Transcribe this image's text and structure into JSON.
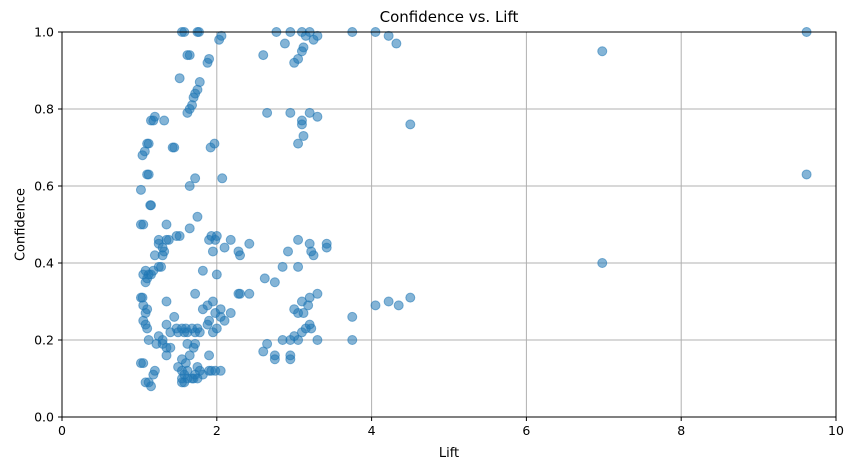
{
  "chart_data": {
    "type": "scatter",
    "title": "Confidence vs. Lift",
    "xlabel": "Lift",
    "ylabel": "Confidence",
    "xlim": [
      0,
      10
    ],
    "ylim": [
      0.0,
      1.0
    ],
    "xticks": [
      0,
      2,
      4,
      6,
      8,
      10
    ],
    "xtick_labels": [
      "0",
      "2",
      "4",
      "6",
      "8",
      "10"
    ],
    "yticks": [
      0.0,
      0.2,
      0.4,
      0.6,
      0.8,
      1.0
    ],
    "ytick_labels": [
      "0.0",
      "0.2",
      "0.4",
      "0.6",
      "0.8",
      "1.0"
    ],
    "grid": true,
    "marker_color": "#1f77b4",
    "marker_alpha": 0.55,
    "points": [
      [
        1.55,
        1.0
      ],
      [
        1.58,
        1.0
      ],
      [
        1.75,
        1.0
      ],
      [
        1.77,
        1.0
      ],
      [
        2.03,
        0.98
      ],
      [
        2.06,
        0.99
      ],
      [
        2.77,
        1.0
      ],
      [
        2.95,
        1.0
      ],
      [
        3.1,
        1.0
      ],
      [
        3.15,
        0.99
      ],
      [
        3.2,
        1.0
      ],
      [
        3.25,
        0.98
      ],
      [
        3.3,
        0.99
      ],
      [
        3.75,
        1.0
      ],
      [
        4.05,
        1.0
      ],
      [
        4.22,
        0.99
      ],
      [
        9.62,
        1.0
      ],
      [
        1.62,
        0.94
      ],
      [
        1.65,
        0.94
      ],
      [
        1.88,
        0.92
      ],
      [
        1.9,
        0.93
      ],
      [
        2.6,
        0.94
      ],
      [
        2.88,
        0.97
      ],
      [
        3.0,
        0.92
      ],
      [
        3.05,
        0.93
      ],
      [
        3.1,
        0.95
      ],
      [
        3.12,
        0.96
      ],
      [
        4.32,
        0.97
      ],
      [
        6.98,
        0.95
      ],
      [
        1.52,
        0.88
      ],
      [
        1.75,
        0.85
      ],
      [
        1.72,
        0.84
      ],
      [
        1.78,
        0.87
      ],
      [
        1.7,
        0.83
      ],
      [
        1.62,
        0.79
      ],
      [
        1.65,
        0.8
      ],
      [
        1.68,
        0.81
      ],
      [
        2.65,
        0.79
      ],
      [
        2.95,
        0.79
      ],
      [
        3.2,
        0.79
      ],
      [
        3.3,
        0.78
      ],
      [
        1.2,
        0.78
      ],
      [
        1.18,
        0.77
      ],
      [
        1.15,
        0.77
      ],
      [
        1.32,
        0.77
      ],
      [
        3.1,
        0.77
      ],
      [
        3.1,
        0.76
      ],
      [
        4.5,
        0.76
      ],
      [
        3.12,
        0.73
      ],
      [
        1.07,
        0.69
      ],
      [
        1.1,
        0.71
      ],
      [
        1.12,
        0.71
      ],
      [
        1.04,
        0.68
      ],
      [
        1.43,
        0.7
      ],
      [
        1.45,
        0.7
      ],
      [
        1.92,
        0.7
      ],
      [
        1.97,
        0.71
      ],
      [
        3.05,
        0.71
      ],
      [
        1.1,
        0.63
      ],
      [
        1.12,
        0.63
      ],
      [
        1.72,
        0.62
      ],
      [
        2.07,
        0.62
      ],
      [
        1.65,
        0.6
      ],
      [
        1.02,
        0.59
      ],
      [
        9.62,
        0.63
      ],
      [
        1.14,
        0.55
      ],
      [
        1.15,
        0.55
      ],
      [
        1.75,
        0.52
      ],
      [
        1.02,
        0.5
      ],
      [
        1.05,
        0.5
      ],
      [
        1.35,
        0.5
      ],
      [
        1.35,
        0.46
      ],
      [
        1.38,
        0.46
      ],
      [
        1.48,
        0.47
      ],
      [
        1.52,
        0.47
      ],
      [
        1.25,
        0.46
      ],
      [
        1.25,
        0.45
      ],
      [
        1.3,
        0.44
      ],
      [
        1.65,
        0.49
      ],
      [
        1.9,
        0.46
      ],
      [
        1.93,
        0.47
      ],
      [
        1.98,
        0.46
      ],
      [
        2.0,
        0.47
      ],
      [
        2.18,
        0.46
      ],
      [
        2.42,
        0.45
      ],
      [
        2.92,
        0.43
      ],
      [
        3.05,
        0.46
      ],
      [
        3.2,
        0.45
      ],
      [
        3.22,
        0.43
      ],
      [
        3.25,
        0.42
      ],
      [
        3.42,
        0.45
      ],
      [
        3.42,
        0.44
      ],
      [
        1.3,
        0.42
      ],
      [
        1.32,
        0.43
      ],
      [
        1.95,
        0.43
      ],
      [
        2.1,
        0.44
      ],
      [
        2.28,
        0.43
      ],
      [
        2.3,
        0.42
      ],
      [
        1.2,
        0.42
      ],
      [
        1.25,
        0.39
      ],
      [
        1.28,
        0.39
      ],
      [
        1.82,
        0.38
      ],
      [
        2.0,
        0.37
      ],
      [
        2.85,
        0.39
      ],
      [
        3.05,
        0.39
      ],
      [
        6.98,
        0.4
      ],
      [
        1.05,
        0.37
      ],
      [
        1.08,
        0.38
      ],
      [
        1.1,
        0.36
      ],
      [
        1.12,
        0.37
      ],
      [
        1.15,
        0.37
      ],
      [
        1.18,
        0.38
      ],
      [
        1.08,
        0.35
      ],
      [
        2.62,
        0.36
      ],
      [
        2.75,
        0.35
      ],
      [
        1.72,
        0.32
      ],
      [
        2.28,
        0.32
      ],
      [
        2.3,
        0.32
      ],
      [
        2.42,
        0.32
      ],
      [
        3.2,
        0.31
      ],
      [
        3.3,
        0.32
      ],
      [
        1.35,
        0.3
      ],
      [
        1.05,
        0.29
      ],
      [
        1.1,
        0.28
      ],
      [
        1.08,
        0.27
      ],
      [
        1.04,
        0.31
      ],
      [
        1.02,
        0.31
      ],
      [
        1.88,
        0.29
      ],
      [
        1.95,
        0.3
      ],
      [
        1.82,
        0.28
      ],
      [
        1.98,
        0.27
      ],
      [
        2.05,
        0.28
      ],
      [
        2.18,
        0.27
      ],
      [
        3.0,
        0.28
      ],
      [
        3.05,
        0.27
      ],
      [
        3.1,
        0.3
      ],
      [
        3.12,
        0.27
      ],
      [
        3.18,
        0.29
      ],
      [
        4.05,
        0.29
      ],
      [
        4.22,
        0.3
      ],
      [
        4.35,
        0.29
      ],
      [
        4.5,
        0.31
      ],
      [
        3.75,
        0.26
      ],
      [
        1.05,
        0.25
      ],
      [
        1.08,
        0.24
      ],
      [
        1.1,
        0.23
      ],
      [
        1.45,
        0.26
      ],
      [
        1.48,
        0.23
      ],
      [
        1.5,
        0.22
      ],
      [
        1.55,
        0.23
      ],
      [
        1.58,
        0.22
      ],
      [
        1.6,
        0.23
      ],
      [
        1.62,
        0.22
      ],
      [
        1.68,
        0.23
      ],
      [
        1.72,
        0.22
      ],
      [
        1.75,
        0.23
      ],
      [
        1.78,
        0.22
      ],
      [
        1.88,
        0.24
      ],
      [
        1.9,
        0.25
      ],
      [
        1.95,
        0.22
      ],
      [
        2.0,
        0.23
      ],
      [
        2.05,
        0.26
      ],
      [
        2.1,
        0.25
      ],
      [
        3.0,
        0.21
      ],
      [
        3.05,
        0.2
      ],
      [
        3.1,
        0.22
      ],
      [
        3.15,
        0.23
      ],
      [
        3.2,
        0.24
      ],
      [
        3.22,
        0.23
      ],
      [
        1.12,
        0.2
      ],
      [
        1.25,
        0.21
      ],
      [
        1.3,
        0.2
      ],
      [
        1.35,
        0.24
      ],
      [
        1.4,
        0.22
      ],
      [
        3.3,
        0.2
      ],
      [
        3.75,
        0.2
      ],
      [
        1.22,
        0.19
      ],
      [
        1.3,
        0.19
      ],
      [
        1.35,
        0.18
      ],
      [
        1.4,
        0.18
      ],
      [
        1.62,
        0.19
      ],
      [
        1.7,
        0.18
      ],
      [
        1.72,
        0.19
      ],
      [
        2.65,
        0.19
      ],
      [
        2.85,
        0.2
      ],
      [
        2.95,
        0.2
      ],
      [
        1.35,
        0.16
      ],
      [
        1.55,
        0.15
      ],
      [
        1.6,
        0.14
      ],
      [
        1.65,
        0.16
      ],
      [
        1.9,
        0.16
      ],
      [
        2.6,
        0.17
      ],
      [
        2.75,
        0.16
      ],
      [
        2.75,
        0.15
      ],
      [
        2.95,
        0.16
      ],
      [
        2.95,
        0.15
      ],
      [
        1.02,
        0.14
      ],
      [
        1.05,
        0.14
      ],
      [
        1.5,
        0.13
      ],
      [
        1.55,
        0.12
      ],
      [
        1.58,
        0.11
      ],
      [
        1.62,
        0.12
      ],
      [
        1.68,
        0.1
      ],
      [
        1.72,
        0.11
      ],
      [
        1.75,
        0.13
      ],
      [
        1.78,
        0.12
      ],
      [
        1.82,
        0.11
      ],
      [
        1.9,
        0.12
      ],
      [
        1.93,
        0.12
      ],
      [
        1.98,
        0.12
      ],
      [
        2.05,
        0.12
      ],
      [
        1.18,
        0.11
      ],
      [
        1.2,
        0.12
      ],
      [
        1.55,
        0.1
      ],
      [
        1.58,
        0.09
      ],
      [
        1.62,
        0.1
      ],
      [
        1.7,
        0.1
      ],
      [
        1.75,
        0.1
      ],
      [
        1.55,
        0.09
      ],
      [
        1.08,
        0.09
      ],
      [
        1.12,
        0.09
      ],
      [
        1.15,
        0.08
      ]
    ]
  }
}
